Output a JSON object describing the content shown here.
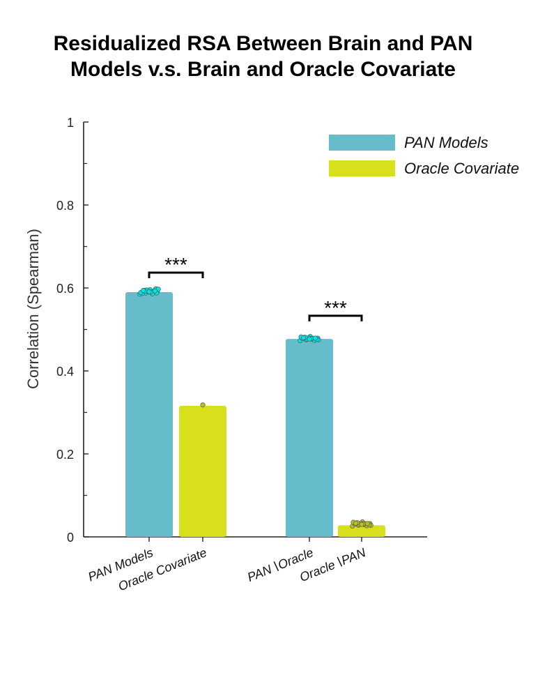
{
  "chart_data": {
    "type": "bar",
    "title_lines": [
      "Residualized RSA Between Brain and PAN",
      "Models v.s. Brain and Oracle Covariate"
    ],
    "ylabel": "Correlation (Spearman)",
    "xlabel": "",
    "ylim": [
      0,
      1
    ],
    "yticks": [
      {
        "value": 0,
        "label": "0"
      },
      {
        "value": 0.2,
        "label": "0.2"
      },
      {
        "value": 0.4,
        "label": "0.4"
      },
      {
        "value": 0.6,
        "label": "0.6"
      },
      {
        "value": 0.8,
        "label": "0.8"
      },
      {
        "value": 1,
        "label": "1"
      }
    ],
    "minor_yticks": [
      0.1,
      0.3,
      0.5,
      0.7,
      0.9
    ],
    "categories": [
      "PAN Models",
      "Oracle Covariate",
      "PAN∖Oracle",
      "Oracle∖PAN"
    ],
    "values": [
      0.59,
      0.316,
      0.477,
      0.028
    ],
    "bar_series": [
      "PAN Models",
      "Oracle Covariate",
      "PAN Models",
      "Oracle Covariate"
    ],
    "legend": [
      {
        "name": "PAN Models",
        "color": "#66bccb"
      },
      {
        "name": "Oracle Covariate",
        "color": "#d8e01e"
      }
    ],
    "legend_position": "top-right",
    "colors": {
      "pan": "#66bccb",
      "oracle": "#d8e01e",
      "pan_points": "#00e5e5",
      "oracle_points": "#b8c21c"
    },
    "points": [
      [
        0.585,
        0.588,
        0.59,
        0.592,
        0.594,
        0.596,
        0.598,
        0.587,
        0.591,
        0.593,
        0.589,
        0.595,
        0.586,
        0.597,
        0.592,
        0.59,
        0.588,
        0.594,
        0.591,
        0.593
      ],
      [
        0.318
      ],
      [
        0.473,
        0.475,
        0.477,
        0.479,
        0.481,
        0.483,
        0.476,
        0.478,
        0.48,
        0.474,
        0.482,
        0.477,
        0.479,
        0.475,
        0.481,
        0.478,
        0.476,
        0.48,
        0.477,
        0.479
      ],
      [
        0.026,
        0.028,
        0.03,
        0.032,
        0.034,
        0.036,
        0.029,
        0.031,
        0.033,
        0.027,
        0.035,
        0.03,
        0.032,
        0.028,
        0.034,
        0.031,
        0.029,
        0.033,
        0.03,
        0.032
      ]
    ],
    "significance": [
      {
        "between": [
          0,
          1
        ],
        "label": "***",
        "level": 0.637
      },
      {
        "between": [
          2,
          3
        ],
        "label": "***",
        "level": 0.533
      }
    ],
    "grid": false
  }
}
